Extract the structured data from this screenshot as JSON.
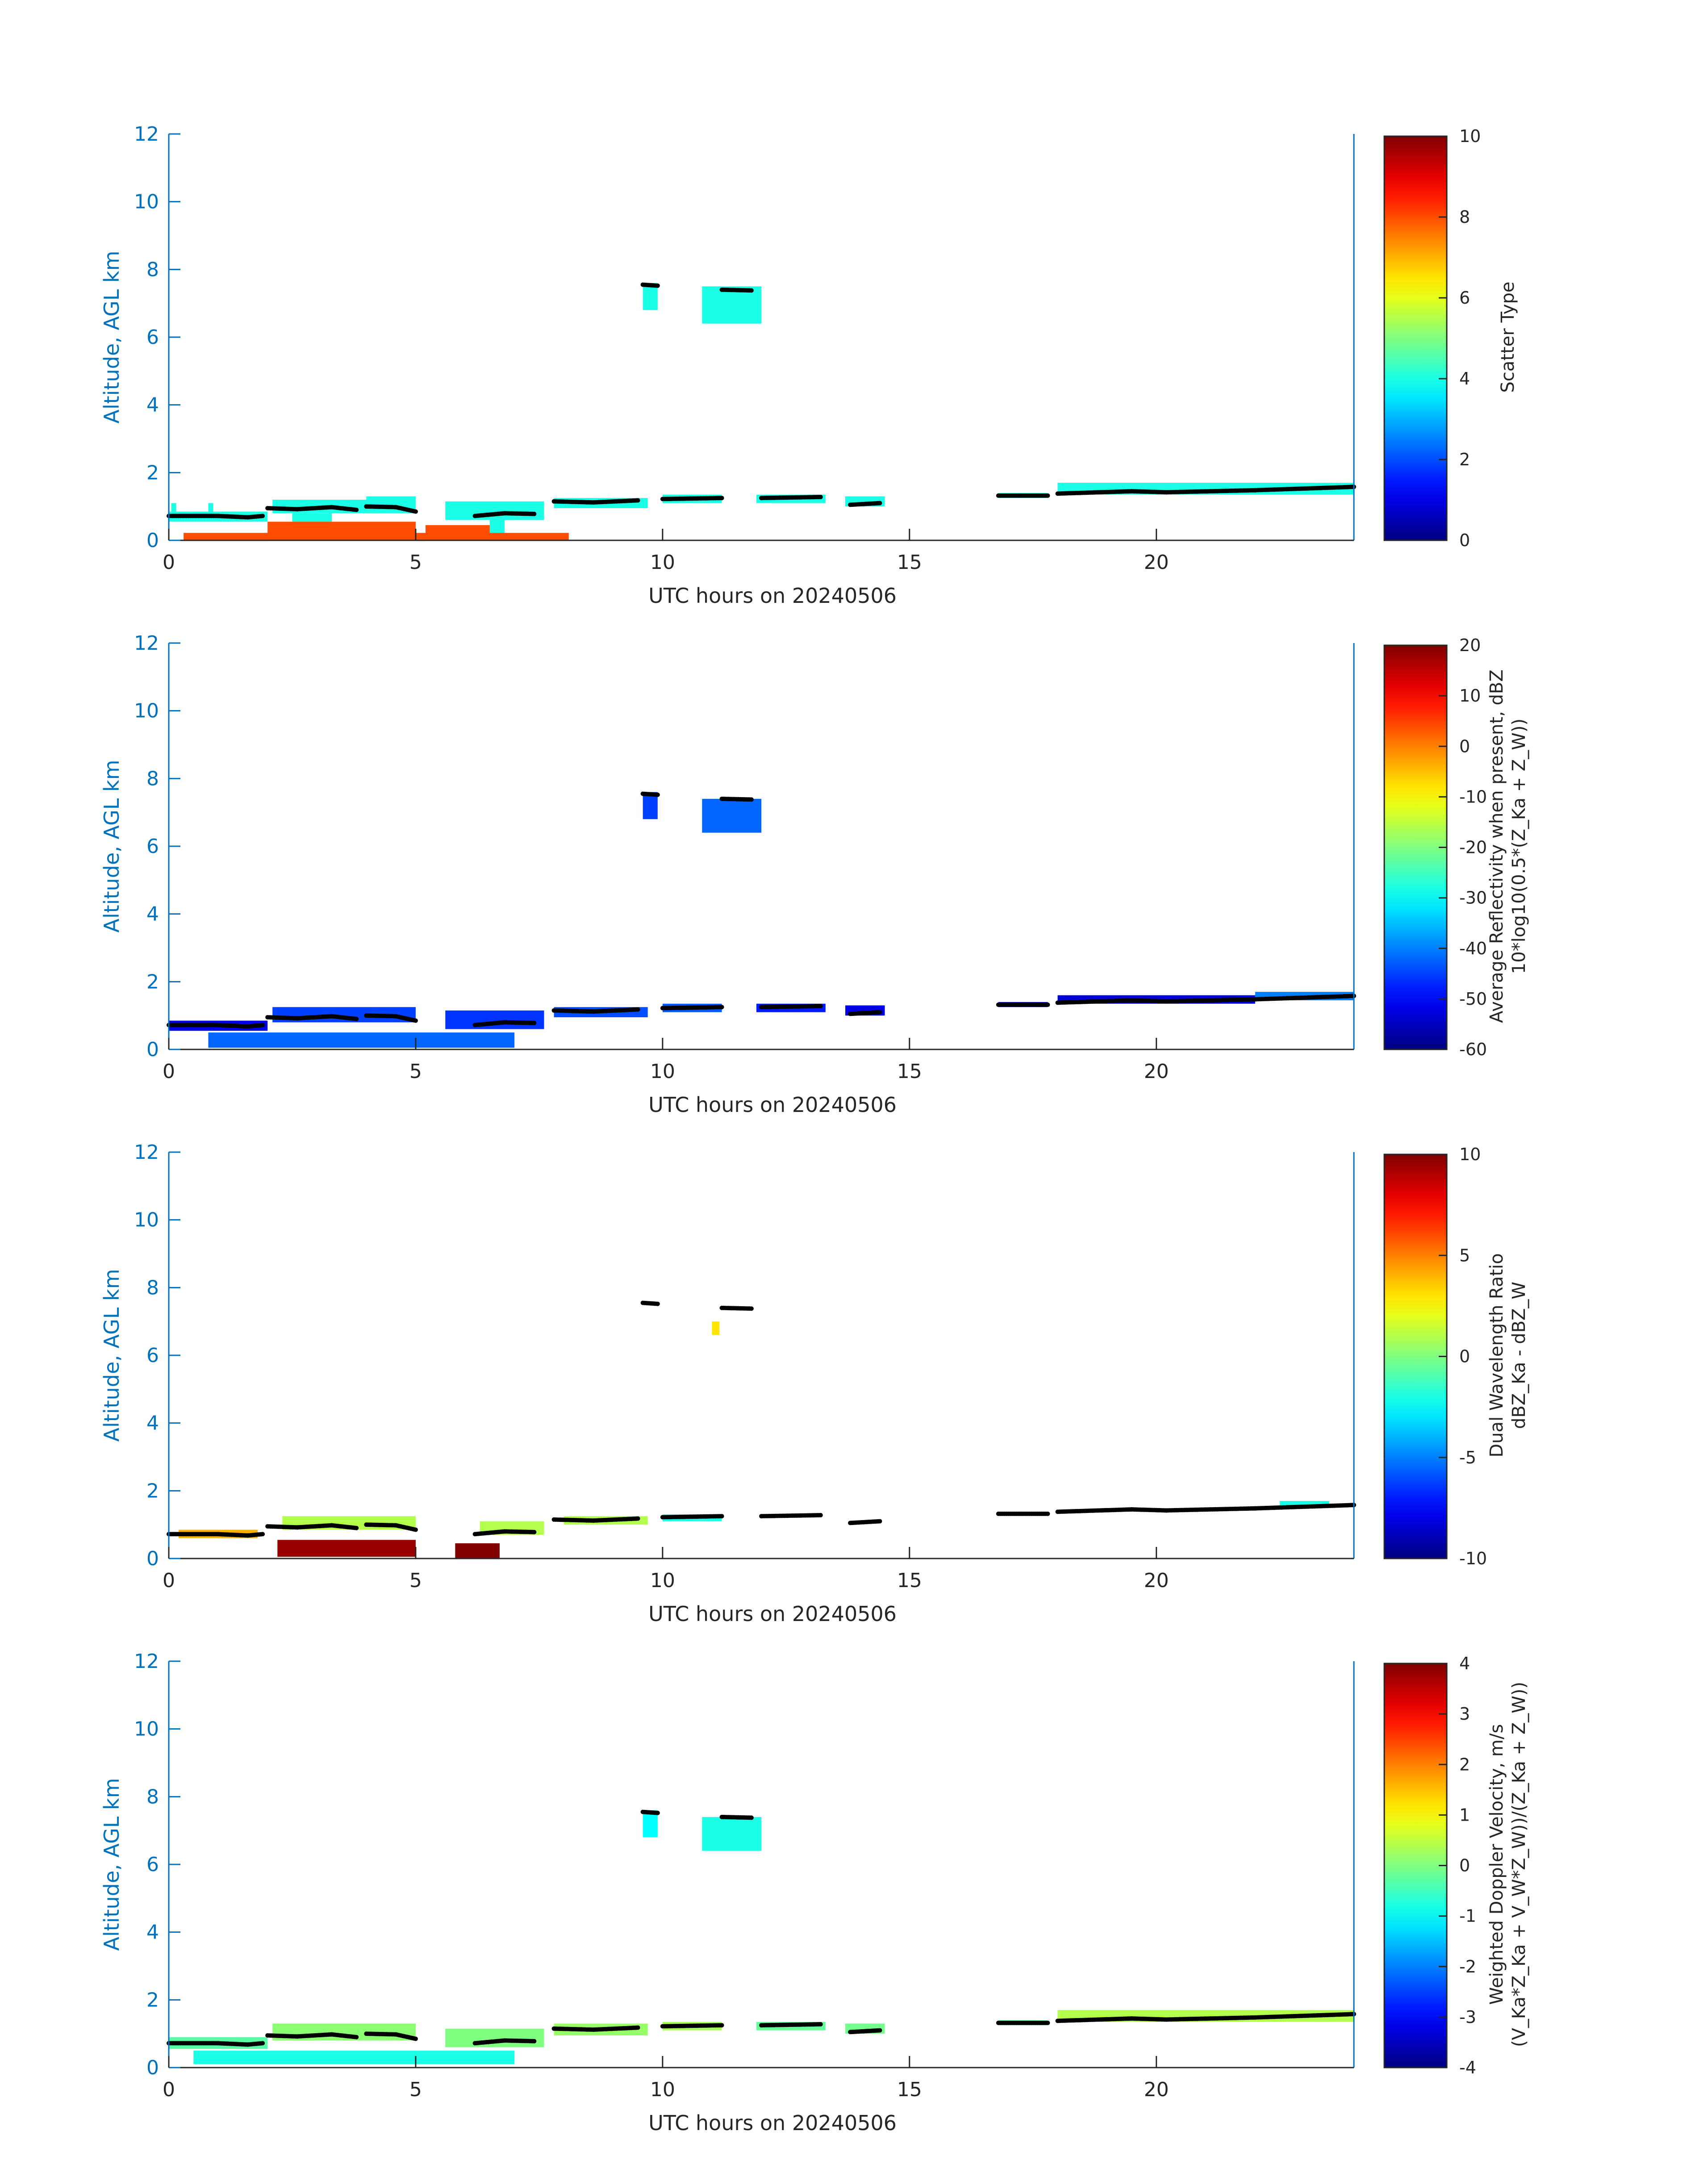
{
  "chart_data": [
    {
      "type": "heatmap",
      "xlabel": "UTC hours on 20240506",
      "ylabel": "Altitude, AGL km",
      "xlim": [
        0,
        24
      ],
      "ylim": [
        0,
        12
      ],
      "xticks": [
        0,
        5,
        10,
        15,
        20
      ],
      "yticks": [
        0,
        2,
        4,
        6,
        8,
        10,
        12
      ],
      "colorbar": {
        "label_lines": [
          "Scatter Type"
        ],
        "ticks": [
          0,
          2,
          4,
          6,
          8,
          10
        ],
        "range": [
          0,
          10
        ],
        "colormap": "jet"
      },
      "layers": [
        {
          "x0": 0,
          "x1": 2.0,
          "y0": 0.55,
          "y1": 0.85,
          "v": 4
        },
        {
          "x0": 0.05,
          "x1": 0.15,
          "y0": 0.85,
          "y1": 1.1,
          "v": 4
        },
        {
          "x0": 0.8,
          "x1": 0.9,
          "y0": 0.7,
          "y1": 1.1,
          "v": 4
        },
        {
          "x0": 2.1,
          "x1": 4.8,
          "y0": 0.8,
          "y1": 1.2,
          "v": 4
        },
        {
          "x0": 4.0,
          "x1": 5.0,
          "y0": 0.8,
          "y1": 1.3,
          "v": 4
        },
        {
          "x0": 5.6,
          "x1": 7.6,
          "y0": 0.6,
          "y1": 1.15,
          "v": 4
        },
        {
          "x0": 7.8,
          "x1": 9.7,
          "y0": 0.95,
          "y1": 1.25,
          "v": 4
        },
        {
          "x0": 10.0,
          "x1": 11.2,
          "y0": 1.1,
          "y1": 1.35,
          "v": 4
        },
        {
          "x0": 11.9,
          "x1": 13.3,
          "y0": 1.1,
          "y1": 1.35,
          "v": 4
        },
        {
          "x0": 13.7,
          "x1": 14.5,
          "y0": 1.0,
          "y1": 1.3,
          "v": 4
        },
        {
          "x0": 16.8,
          "x1": 17.8,
          "y0": 1.25,
          "y1": 1.4,
          "v": 4
        },
        {
          "x0": 18.0,
          "x1": 24.0,
          "y0": 1.35,
          "y1": 1.7,
          "v": 4
        },
        {
          "x0": 9.6,
          "x1": 9.9,
          "y0": 6.8,
          "y1": 7.6,
          "v": 4
        },
        {
          "x0": 10.8,
          "x1": 12.0,
          "y0": 6.4,
          "y1": 7.5,
          "v": 4
        },
        {
          "x0": 2.5,
          "x1": 3.3,
          "y0": 0.2,
          "y1": 0.8,
          "v": 4
        },
        {
          "x0": 6.5,
          "x1": 6.8,
          "y0": 0.1,
          "y1": 0.8,
          "v": 4
        },
        {
          "x0": 0.3,
          "x1": 8.1,
          "y0": 0.02,
          "y1": 0.22,
          "v": 8
        },
        {
          "x0": 2.0,
          "x1": 5.0,
          "y0": 0.02,
          "y1": 0.55,
          "v": 8
        },
        {
          "x0": 5.2,
          "x1": 6.5,
          "y0": 0.02,
          "y1": 0.45,
          "v": 8
        }
      ]
    },
    {
      "type": "heatmap",
      "xlabel": "UTC hours on 20240506",
      "ylabel": "Altitude, AGL km",
      "xlim": [
        0,
        24
      ],
      "ylim": [
        0,
        12
      ],
      "xticks": [
        0,
        5,
        10,
        15,
        20
      ],
      "yticks": [
        0,
        2,
        4,
        6,
        8,
        10,
        12
      ],
      "colorbar": {
        "label_lines": [
          "Average Reflectivity when present, dBZ",
          "10*log10(0.5*(Z_Ka + Z_W))"
        ],
        "ticks": [
          -60,
          -50,
          -40,
          -30,
          -20,
          -10,
          0,
          10,
          20
        ],
        "range": [
          -60,
          20
        ],
        "colormap": "jet"
      },
      "layers": [
        {
          "x0": 0,
          "x1": 2.0,
          "y0": 0.55,
          "y1": 0.85,
          "v": -52
        },
        {
          "x0": 2.1,
          "x1": 5.0,
          "y0": 0.8,
          "y1": 1.25,
          "v": -45
        },
        {
          "x0": 5.6,
          "x1": 7.6,
          "y0": 0.6,
          "y1": 1.15,
          "v": -46
        },
        {
          "x0": 7.8,
          "x1": 9.7,
          "y0": 0.95,
          "y1": 1.25,
          "v": -44
        },
        {
          "x0": 10.0,
          "x1": 11.2,
          "y0": 1.1,
          "y1": 1.35,
          "v": -43
        },
        {
          "x0": 11.9,
          "x1": 13.3,
          "y0": 1.1,
          "y1": 1.35,
          "v": -48
        },
        {
          "x0": 13.7,
          "x1": 14.5,
          "y0": 1.0,
          "y1": 1.3,
          "v": -52
        },
        {
          "x0": 16.8,
          "x1": 17.8,
          "y0": 1.25,
          "y1": 1.4,
          "v": -55
        },
        {
          "x0": 18.0,
          "x1": 22.0,
          "y0": 1.35,
          "y1": 1.6,
          "v": -53
        },
        {
          "x0": 22.0,
          "x1": 24.0,
          "y0": 1.45,
          "y1": 1.7,
          "v": -40
        },
        {
          "x0": 0.8,
          "x1": 7.0,
          "y0": 0.05,
          "y1": 0.5,
          "v": -42
        },
        {
          "x0": 9.6,
          "x1": 9.9,
          "y0": 6.8,
          "y1": 7.6,
          "v": -45
        },
        {
          "x0": 10.8,
          "x1": 12.0,
          "y0": 6.4,
          "y1": 7.4,
          "v": -42
        }
      ]
    },
    {
      "type": "heatmap",
      "xlabel": "UTC hours on 20240506",
      "ylabel": "Altitude, AGL km",
      "xlim": [
        0,
        24
      ],
      "ylim": [
        0,
        12
      ],
      "xticks": [
        0,
        5,
        10,
        15,
        20
      ],
      "yticks": [
        0,
        2,
        4,
        6,
        8,
        10,
        12
      ],
      "colorbar": {
        "label_lines": [
          "Dual Wavelength Ratio",
          "dBZ_Ka - dBZ_W"
        ],
        "ticks": [
          -10,
          -5,
          0,
          5,
          10
        ],
        "range": [
          -10,
          10
        ],
        "colormap": "jet"
      },
      "layers": [
        {
          "x0": 0.2,
          "x1": 1.8,
          "y0": 0.6,
          "y1": 0.85,
          "v": 4
        },
        {
          "x0": 2.3,
          "x1": 5.0,
          "y0": 0.85,
          "y1": 1.25,
          "v": 1
        },
        {
          "x0": 6.3,
          "x1": 7.6,
          "y0": 0.7,
          "y1": 1.1,
          "v": 1
        },
        {
          "x0": 8.0,
          "x1": 9.7,
          "y0": 1.0,
          "y1": 1.25,
          "v": 1
        },
        {
          "x0": 10.0,
          "x1": 11.2,
          "y0": 1.1,
          "y1": 1.3,
          "v": -2
        },
        {
          "x0": 22.5,
          "x1": 23.5,
          "y0": 1.55,
          "y1": 1.7,
          "v": -2
        },
        {
          "x0": 2.2,
          "x1": 5.0,
          "y0": 0.05,
          "y1": 0.55,
          "v": 9.5
        },
        {
          "x0": 5.8,
          "x1": 6.7,
          "y0": 0.02,
          "y1": 0.45,
          "v": 10
        },
        {
          "x0": 11.0,
          "x1": 11.15,
          "y0": 6.6,
          "y1": 7.0,
          "v": 3
        }
      ]
    },
    {
      "type": "heatmap",
      "xlabel": "UTC hours on 20240506",
      "ylabel": "Altitude, AGL km",
      "xlim": [
        0,
        24
      ],
      "ylim": [
        0,
        12
      ],
      "xticks": [
        0,
        5,
        10,
        15,
        20
      ],
      "yticks": [
        0,
        2,
        4,
        6,
        8,
        10,
        12
      ],
      "colorbar": {
        "label_lines": [
          "Weighted Doppler Velocity, m/s",
          "(V_Ka*Z_Ka + V_W*Z_W))/(Z_Ka + Z_W))"
        ],
        "ticks": [
          -4,
          -3,
          -2,
          -1,
          0,
          1,
          2,
          3,
          4
        ],
        "range": [
          -4,
          4
        ],
        "colormap": "jet"
      },
      "layers": [
        {
          "x0": 0,
          "x1": 2.0,
          "y0": 0.55,
          "y1": 0.9,
          "v": -0.3
        },
        {
          "x0": 2.1,
          "x1": 5.0,
          "y0": 0.8,
          "y1": 1.3,
          "v": 0.1
        },
        {
          "x0": 5.6,
          "x1": 7.6,
          "y0": 0.6,
          "y1": 1.15,
          "v": 0
        },
        {
          "x0": 7.8,
          "x1": 9.7,
          "y0": 0.95,
          "y1": 1.3,
          "v": 0.2
        },
        {
          "x0": 10.0,
          "x1": 11.2,
          "y0": 1.1,
          "y1": 1.35,
          "v": 0.3
        },
        {
          "x0": 11.9,
          "x1": 13.3,
          "y0": 1.1,
          "y1": 1.35,
          "v": -0.2
        },
        {
          "x0": 13.7,
          "x1": 14.5,
          "y0": 1.0,
          "y1": 1.3,
          "v": -0.1
        },
        {
          "x0": 16.8,
          "x1": 17.8,
          "y0": 1.25,
          "y1": 1.4,
          "v": -0.3
        },
        {
          "x0": 18.0,
          "x1": 24.0,
          "y0": 1.35,
          "y1": 1.7,
          "v": 0.4
        },
        {
          "x0": 0.5,
          "x1": 7.0,
          "y0": 0.1,
          "y1": 0.5,
          "v": -0.8
        },
        {
          "x0": 9.6,
          "x1": 9.9,
          "y0": 6.8,
          "y1": 7.6,
          "v": -1.0
        },
        {
          "x0": 10.8,
          "x1": 12.0,
          "y0": 6.4,
          "y1": 7.4,
          "v": -0.8
        }
      ]
    }
  ],
  "cloud_base_trace": {
    "color": "#000000",
    "segments": [
      [
        [
          0,
          0.72
        ],
        [
          1.0,
          0.72
        ],
        [
          1.6,
          0.68
        ],
        [
          1.9,
          0.72
        ]
      ],
      [
        [
          2.0,
          0.95
        ],
        [
          2.6,
          0.92
        ],
        [
          3.3,
          0.98
        ],
        [
          3.8,
          0.9
        ]
      ],
      [
        [
          4.0,
          1.0
        ],
        [
          4.6,
          0.98
        ],
        [
          5.0,
          0.85
        ]
      ],
      [
        [
          6.2,
          0.72
        ],
        [
          6.8,
          0.8
        ],
        [
          7.4,
          0.78
        ]
      ],
      [
        [
          7.8,
          1.15
        ],
        [
          8.6,
          1.12
        ],
        [
          9.5,
          1.18
        ]
      ],
      [
        [
          10.0,
          1.22
        ],
        [
          11.2,
          1.25
        ]
      ],
      [
        [
          12.0,
          1.25
        ],
        [
          13.2,
          1.28
        ]
      ],
      [
        [
          13.8,
          1.05
        ],
        [
          14.4,
          1.1
        ]
      ],
      [
        [
          16.8,
          1.32
        ],
        [
          17.8,
          1.32
        ]
      ],
      [
        [
          18.0,
          1.38
        ],
        [
          19.5,
          1.45
        ],
        [
          20.2,
          1.42
        ],
        [
          22.0,
          1.48
        ],
        [
          24.0,
          1.58
        ]
      ],
      [
        [
          9.6,
          7.55
        ],
        [
          9.9,
          7.52
        ]
      ],
      [
        [
          11.2,
          7.4
        ],
        [
          11.8,
          7.38
        ]
      ]
    ]
  }
}
